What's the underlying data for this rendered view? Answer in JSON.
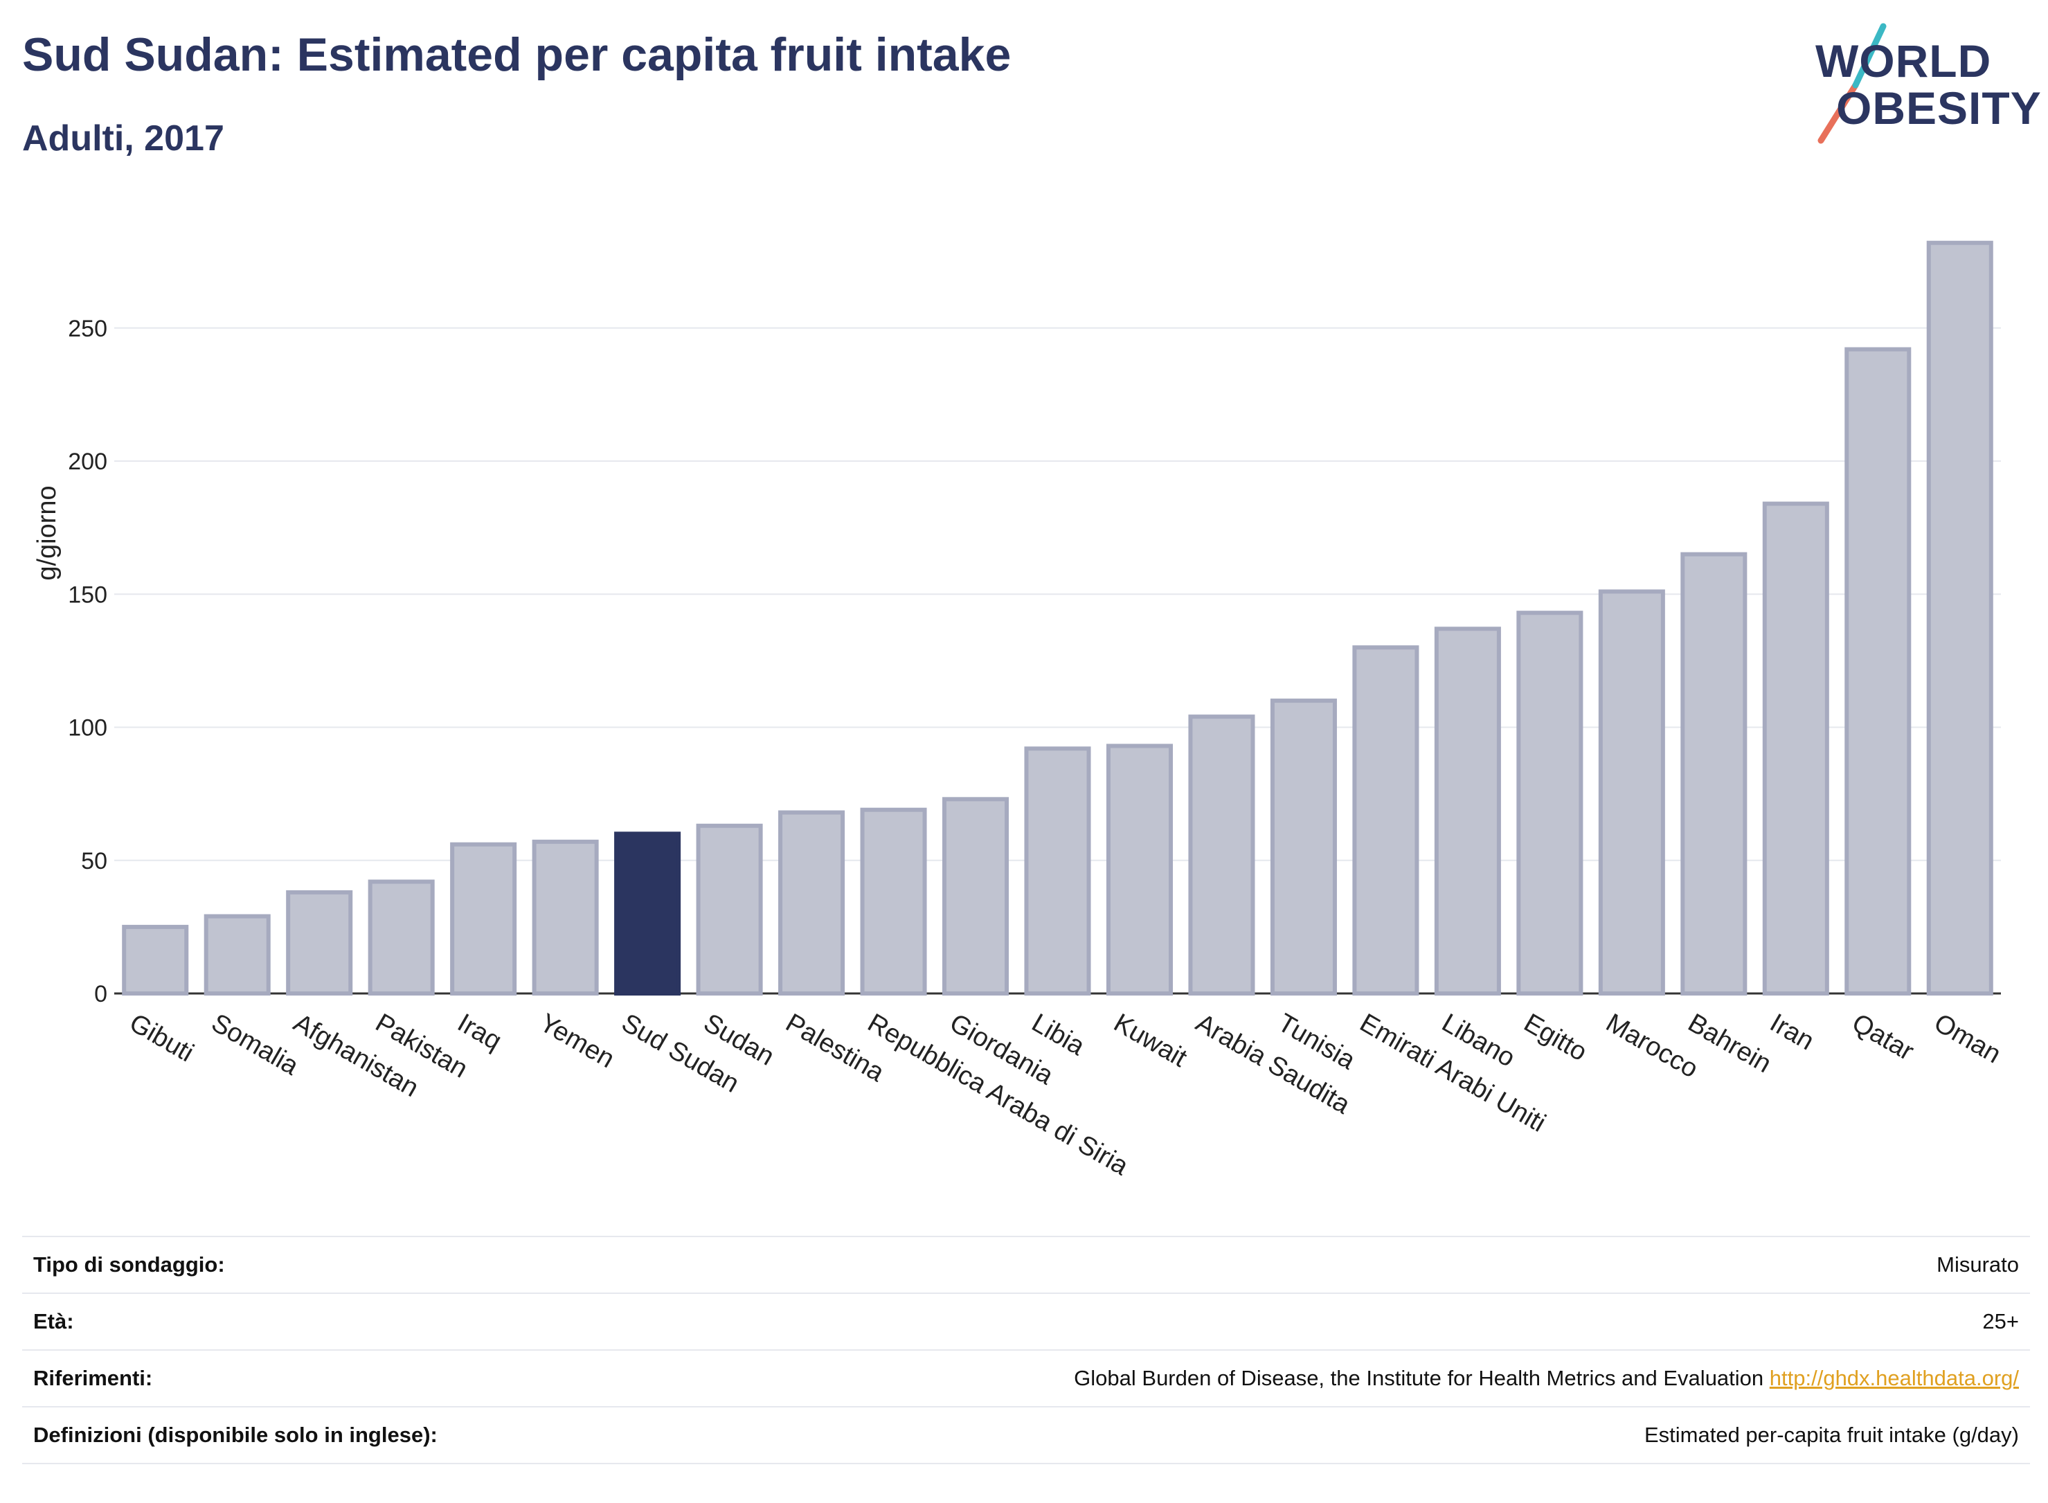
{
  "header": {
    "title": "Sud Sudan: Estimated per capita fruit intake",
    "subtitle": "Adulti, 2017"
  },
  "logo": {
    "line1": "WORLD",
    "line2": "OBESITY",
    "accent_teal": "#3bb8c4",
    "accent_red": "#e8705a"
  },
  "chart_data": {
    "type": "bar",
    "ylabel": "g/giorno",
    "ylim": [
      0,
      290
    ],
    "yticks": [
      0,
      50,
      100,
      150,
      200,
      250
    ],
    "grid": true,
    "highlight": "Sud Sudan",
    "colors": {
      "bar": "#c0c3d0",
      "bar_border": "#a6aabf",
      "highlight": "#2b3560"
    },
    "categories": [
      "Gibuti",
      "Somalia",
      "Afghanistan",
      "Pakistan",
      "Iraq",
      "Yemen",
      "Sud Sudan",
      "Sudan",
      "Palestina",
      "Repubblica Araba di Siria",
      "Giordania",
      "Libia",
      "Kuwait",
      "Arabia Saudita",
      "Tunisia",
      "Emirati Arabi Uniti",
      "Libano",
      "Egitto",
      "Marocco",
      "Bahrein",
      "Iran",
      "Qatar",
      "Oman"
    ],
    "values": [
      25,
      29,
      38,
      42,
      56,
      57,
      60,
      63,
      68,
      69,
      73,
      92,
      93,
      104,
      110,
      130,
      137,
      143,
      151,
      165,
      184,
      242,
      282
    ]
  },
  "info": [
    {
      "label": "Tipo di sondaggio:",
      "value": "Misurato"
    },
    {
      "label": "Età:",
      "value": "25+"
    },
    {
      "label": "Riferimenti:",
      "value": "Global Burden of Disease, the Institute for Health Metrics and Evaluation",
      "link": "http://ghdx.healthdata.org/"
    },
    {
      "label": "Definizioni (disponibile solo in inglese):",
      "value": "Estimated per-capita fruit intake (g/day)"
    }
  ]
}
